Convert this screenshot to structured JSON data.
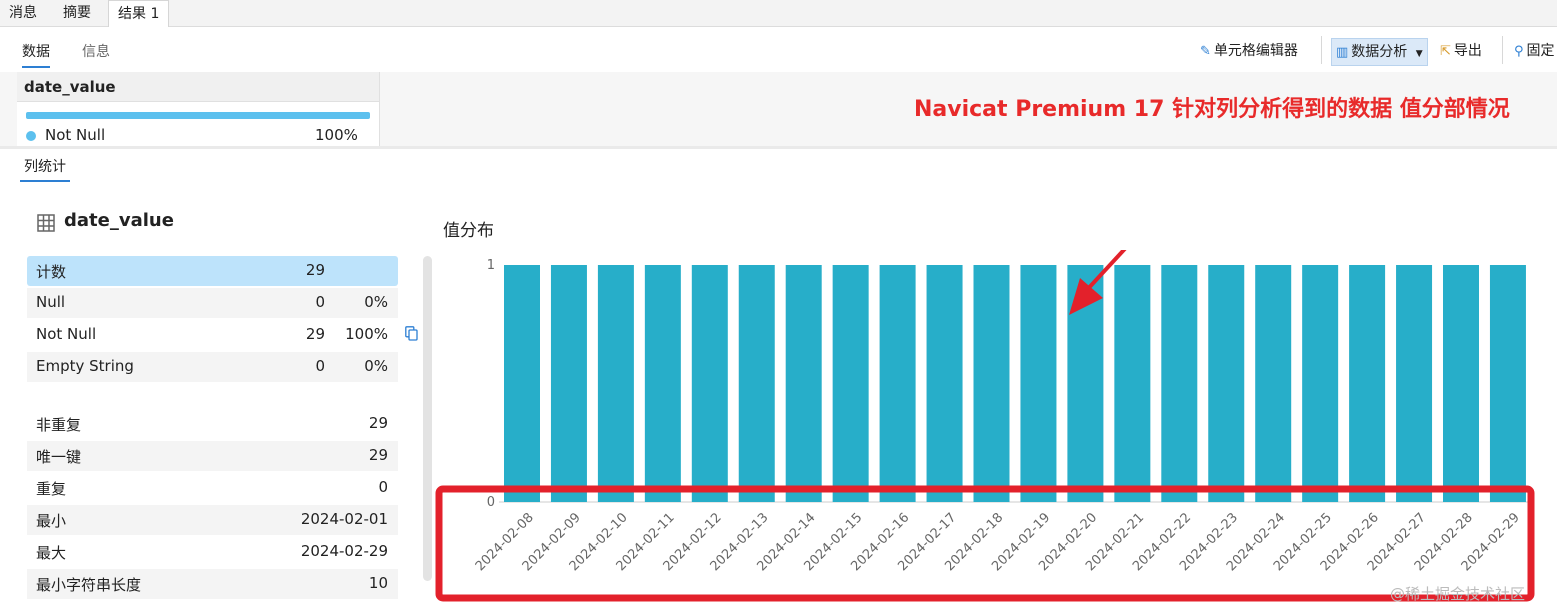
{
  "tabs": [
    {
      "label": "消息",
      "active": false
    },
    {
      "label": "摘要",
      "active": false
    },
    {
      "label": "结果 1",
      "active": true
    }
  ],
  "subtabs": [
    {
      "label": "数据",
      "active": true
    },
    {
      "label": "信息",
      "active": false
    }
  ],
  "toolbar": {
    "cell_editor": "单元格编辑器",
    "data_analysis": "数据分析",
    "export": "导出",
    "pin": "固定"
  },
  "grid": {
    "column": "date_value",
    "not_null_label": "Not Null",
    "not_null_pct": "100%",
    "not_null_fraction": 1.0,
    "dot_color": "#5cc0ee"
  },
  "annotation": "Navicat Premium 17 针对列分析得到的数据 值分部情况",
  "stats": {
    "tab_label": "列统计",
    "column": "date_value",
    "rows1": [
      {
        "label": "计数",
        "value": "29",
        "pct": ""
      },
      {
        "label": "Null",
        "value": "0",
        "pct": "0%"
      },
      {
        "label": "Not Null",
        "value": "29",
        "pct": "100%"
      },
      {
        "label": "Empty String",
        "value": "0",
        "pct": "0%"
      }
    ],
    "rows2": [
      {
        "label": "非重复",
        "value": "29"
      },
      {
        "label": "唯一键",
        "value": "29"
      },
      {
        "label": "重复",
        "value": "0"
      },
      {
        "label": "最小",
        "value": "2024-02-01"
      },
      {
        "label": "最大",
        "value": "2024-02-29"
      },
      {
        "label": "最小字符串长度",
        "value": "10"
      }
    ]
  },
  "chart_data": {
    "type": "bar",
    "title": "值分布",
    "categories": [
      "2024-02-08",
      "2024-02-09",
      "2024-02-10",
      "2024-02-11",
      "2024-02-12",
      "2024-02-13",
      "2024-02-14",
      "2024-02-15",
      "2024-02-16",
      "2024-02-17",
      "2024-02-18",
      "2024-02-19",
      "2024-02-20",
      "2024-02-21",
      "2024-02-22",
      "2024-02-23",
      "2024-02-24",
      "2024-02-25",
      "2024-02-26",
      "2024-02-27",
      "2024-02-28",
      "2024-02-29"
    ],
    "values": [
      1,
      1,
      1,
      1,
      1,
      1,
      1,
      1,
      1,
      1,
      1,
      1,
      1,
      1,
      1,
      1,
      1,
      1,
      1,
      1,
      1,
      1
    ],
    "yticks": [
      "0",
      "1"
    ],
    "ylim": [
      0,
      1
    ],
    "bar_color": "#27aec9",
    "highlight_color": "#e3212b"
  },
  "watermark": "@稀土掘金技术社区"
}
